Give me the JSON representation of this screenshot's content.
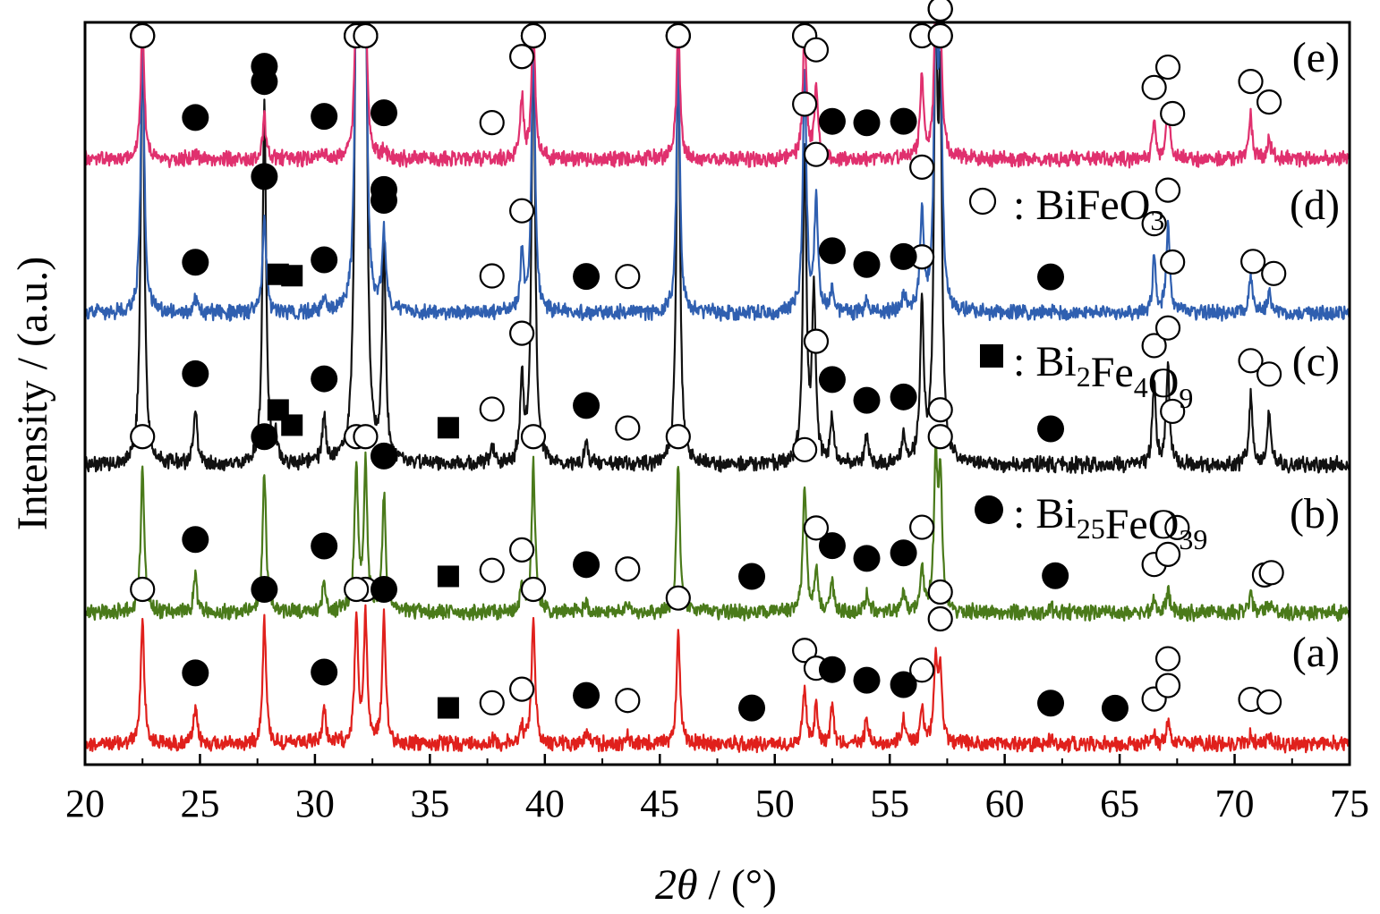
{
  "chart_data": {
    "type": "line",
    "xlabel": "2θ / (°)",
    "xlabel_parts": {
      "italic": "2θ",
      "rest": " / (°)"
    },
    "ylabel": "Intensity / (a.u.)",
    "xlim": [
      20,
      75
    ],
    "x_ticks": [
      "20",
      "25",
      "30",
      "35",
      "40",
      "45",
      "50",
      "55",
      "60",
      "65",
      "70",
      "75"
    ],
    "y_ticks": "none",
    "grid": false,
    "legend": {
      "placement": "right, inside plot",
      "entries": [
        {
          "marker": "open-circle",
          "text": "BiFeO",
          "sub": "3"
        },
        {
          "marker": "filled-square",
          "text": "Bi",
          "sub": "2",
          "text2": "Fe",
          "sub2": "4",
          "text3": "O",
          "sub3": "9"
        },
        {
          "marker": "filled-circle",
          "text": "Bi",
          "sub": "25",
          "text2": "FeO",
          "sub2": "39"
        }
      ],
      "separator": ":"
    },
    "series": [
      {
        "name": "(a)",
        "color": "#e0201c",
        "offset": 0,
        "peaks": [
          [
            22.5,
            1.0
          ],
          [
            24.8,
            0.28
          ],
          [
            27.8,
            1.0
          ],
          [
            30.4,
            0.28
          ],
          [
            31.8,
            1.0
          ],
          [
            32.2,
            1.0
          ],
          [
            33.0,
            1.0
          ],
          [
            37.7,
            0.04
          ],
          [
            39.0,
            0.12
          ],
          [
            39.5,
            1.0
          ],
          [
            41.8,
            0.1
          ],
          [
            43.6,
            0.06
          ],
          [
            45.8,
            0.88
          ],
          [
            51.3,
            0.45
          ],
          [
            51.8,
            0.3
          ],
          [
            52.5,
            0.3
          ],
          [
            54.0,
            0.22
          ],
          [
            55.6,
            0.18
          ],
          [
            56.4,
            0.28
          ],
          [
            57.0,
            0.65
          ],
          [
            57.2,
            0.6
          ],
          [
            62.0,
            0.04
          ],
          [
            66.5,
            0.07
          ],
          [
            67.1,
            0.18
          ],
          [
            70.7,
            0.07
          ],
          [
            71.5,
            0.05
          ]
        ]
      },
      {
        "name": "(b)",
        "color": "#4a7a1a",
        "offset": 1,
        "peaks": [
          [
            22.5,
            1.0
          ],
          [
            24.8,
            0.25
          ],
          [
            27.8,
            0.95
          ],
          [
            30.4,
            0.2
          ],
          [
            31.8,
            1.0
          ],
          [
            32.2,
            1.0
          ],
          [
            33.0,
            0.8
          ],
          [
            37.7,
            0.04
          ],
          [
            39.0,
            0.15
          ],
          [
            39.5,
            1.0
          ],
          [
            41.8,
            0.08
          ],
          [
            43.6,
            0.05
          ],
          [
            45.8,
            1.0
          ],
          [
            51.3,
            0.85
          ],
          [
            51.8,
            0.3
          ],
          [
            52.5,
            0.2
          ],
          [
            54.0,
            0.12
          ],
          [
            55.6,
            0.15
          ],
          [
            56.4,
            0.3
          ],
          [
            57.0,
            1.0
          ],
          [
            57.2,
            0.9
          ],
          [
            62.0,
            0.04
          ],
          [
            66.5,
            0.08
          ],
          [
            67.1,
            0.15
          ],
          [
            70.7,
            0.12
          ],
          [
            71.5,
            0.06
          ]
        ]
      },
      {
        "name": "(c)",
        "color": "#111111",
        "offset": 2,
        "peaks": [
          [
            22.5,
            1.0
          ],
          [
            24.8,
            0.12
          ],
          [
            27.8,
            0.8
          ],
          [
            28.3,
            0.05
          ],
          [
            30.4,
            0.1
          ],
          [
            31.8,
            1.0
          ],
          [
            32.0,
            1.0
          ],
          [
            32.2,
            1.0
          ],
          [
            33.0,
            0.48
          ],
          [
            37.7,
            0.04
          ],
          [
            39.0,
            0.18
          ],
          [
            39.5,
            1.0
          ],
          [
            41.8,
            0.05
          ],
          [
            45.8,
            0.95
          ],
          [
            51.3,
            0.7
          ],
          [
            51.7,
            0.38
          ],
          [
            52.5,
            0.1
          ],
          [
            54.0,
            0.06
          ],
          [
            55.6,
            0.06
          ],
          [
            56.4,
            0.35
          ],
          [
            57.0,
            0.95
          ],
          [
            57.2,
            0.75
          ],
          [
            66.5,
            0.18
          ],
          [
            67.1,
            0.22
          ],
          [
            70.7,
            0.15
          ],
          [
            71.5,
            0.12
          ]
        ]
      },
      {
        "name": "(d)",
        "color": "#2f5fb0",
        "offset": 3,
        "peaks": [
          [
            22.5,
            1.0
          ],
          [
            24.8,
            0.05
          ],
          [
            27.8,
            0.35
          ],
          [
            30.4,
            0.05
          ],
          [
            31.8,
            1.0
          ],
          [
            32.0,
            1.0
          ],
          [
            32.2,
            1.0
          ],
          [
            33.0,
            0.28
          ],
          [
            39.0,
            0.2
          ],
          [
            39.5,
            1.0
          ],
          [
            45.8,
            0.9
          ],
          [
            51.3,
            0.85
          ],
          [
            51.8,
            0.4
          ],
          [
            52.5,
            0.08
          ],
          [
            54.0,
            0.04
          ],
          [
            55.6,
            0.06
          ],
          [
            56.4,
            0.35
          ],
          [
            57.0,
            1.0
          ],
          [
            57.2,
            0.9
          ],
          [
            66.5,
            0.18
          ],
          [
            67.1,
            0.3
          ],
          [
            70.7,
            0.12
          ],
          [
            71.5,
            0.07
          ]
        ]
      },
      {
        "name": "(e)",
        "color": "#e0306e",
        "offset": 4,
        "peaks": [
          [
            22.5,
            1.0
          ],
          [
            24.8,
            0.04
          ],
          [
            27.8,
            0.3
          ],
          [
            30.4,
            0.04
          ],
          [
            31.8,
            1.0
          ],
          [
            32.0,
            1.0
          ],
          [
            32.2,
            1.0
          ],
          [
            33.0,
            0.05
          ],
          [
            39.0,
            0.45
          ],
          [
            39.5,
            1.0
          ],
          [
            45.8,
            0.95
          ],
          [
            51.3,
            0.95
          ],
          [
            51.8,
            0.5
          ],
          [
            56.4,
            0.6
          ],
          [
            57.0,
            1.0
          ],
          [
            57.2,
            0.95
          ],
          [
            66.5,
            0.25
          ],
          [
            67.1,
            0.4
          ],
          [
            70.7,
            0.3
          ],
          [
            71.5,
            0.15
          ]
        ]
      }
    ],
    "markers": [
      {
        "series": "(a)",
        "symbol": "open-circle",
        "x": [
          22.5,
          32.2,
          39.5,
          45.8,
          51.3,
          51.8,
          56.4,
          57.2,
          57.2,
          37.7,
          39.0,
          43.6,
          66.5,
          67.1,
          67.1,
          70.7,
          71.5,
          31.8
        ]
      },
      {
        "series": "(a)",
        "symbol": "filled-circle",
        "x": [
          24.8,
          27.8,
          30.4,
          33.0,
          41.8,
          49.0,
          52.5,
          54.0,
          55.6,
          62.0,
          64.8
        ]
      },
      {
        "series": "(a)",
        "symbol": "filled-square",
        "x": [
          35.8
        ]
      },
      {
        "series": "(b)",
        "symbol": "open-circle",
        "x": [
          22.5,
          31.8,
          32.2,
          39.5,
          45.8,
          51.3,
          51.8,
          56.4,
          57.2,
          57.2,
          37.7,
          39.0,
          43.6,
          66.5,
          67.1,
          67.5,
          71.3,
          71.6
        ]
      },
      {
        "series": "(b)",
        "symbol": "filled-circle",
        "x": [
          24.8,
          27.8,
          30.4,
          33.0,
          41.8,
          49.0,
          52.5,
          54.0,
          55.6,
          62.2
        ]
      },
      {
        "series": "(b)",
        "symbol": "filled-square",
        "x": [
          35.8
        ]
      },
      {
        "series": "(c)",
        "symbol": "open-circle",
        "x": [
          22.5,
          31.8,
          32.2,
          39.5,
          45.8,
          51.3,
          51.8,
          56.4,
          57.2,
          57.2,
          37.7,
          39.0,
          43.6,
          66.5,
          67.1,
          67.3,
          70.7,
          71.5
        ]
      },
      {
        "series": "(c)",
        "symbol": "filled-circle",
        "x": [
          24.8,
          27.8,
          30.4,
          33.0,
          41.8,
          52.5,
          54.0,
          55.6,
          62.0
        ]
      },
      {
        "series": "(c)",
        "symbol": "filled-square",
        "x": [
          28.4,
          29.0,
          35.8
        ]
      },
      {
        "series": "(d)",
        "symbol": "open-circle",
        "x": [
          22.5,
          31.8,
          32.2,
          39.5,
          45.8,
          51.3,
          51.8,
          56.4,
          57.2,
          57.2,
          37.7,
          39.0,
          43.6,
          66.5,
          67.1,
          67.3,
          70.8,
          71.7
        ]
      },
      {
        "series": "(d)",
        "symbol": "filled-circle",
        "x": [
          24.8,
          27.8,
          30.4,
          33.0,
          41.8,
          52.5,
          54.0,
          55.6,
          62.0
        ]
      },
      {
        "series": "(d)",
        "symbol": "filled-square",
        "x": [
          28.4,
          29.0
        ]
      },
      {
        "series": "(e)",
        "symbol": "open-circle",
        "x": [
          22.5,
          31.8,
          32.2,
          39.5,
          45.8,
          51.3,
          51.8,
          56.4,
          57.2,
          57.2,
          37.7,
          39.0,
          66.5,
          67.1,
          67.3,
          70.7,
          71.5
        ]
      },
      {
        "series": "(e)",
        "symbol": "filled-circle",
        "x": [
          24.8,
          27.8,
          30.4,
          33.0,
          52.5,
          54.0,
          55.6
        ]
      }
    ]
  }
}
